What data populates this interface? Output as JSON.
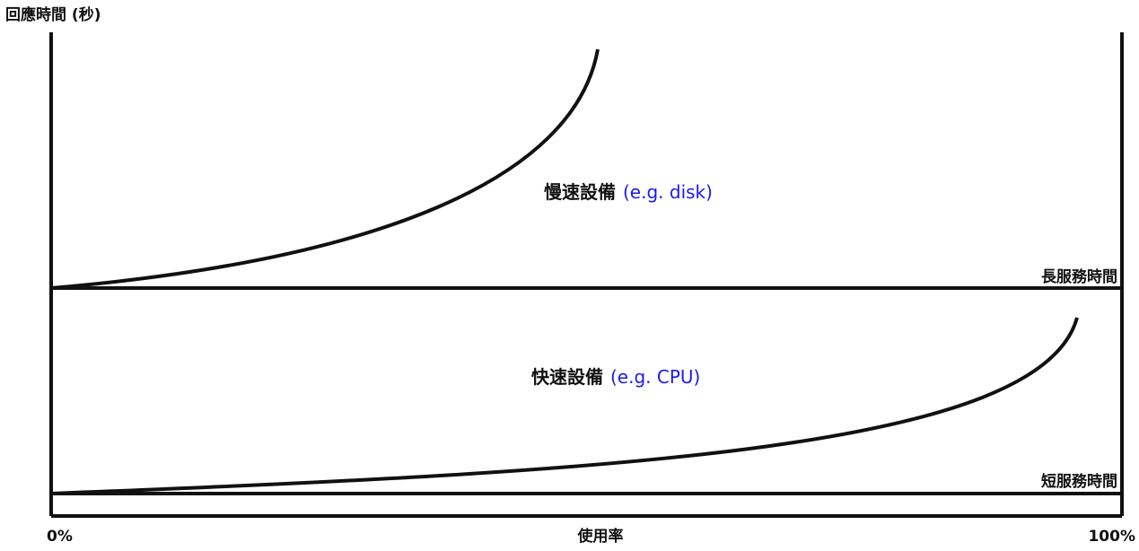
{
  "y_axis_label": "回應時間 (秒)",
  "x_axis_label": "使用率",
  "x_tick_start": "0%",
  "x_tick_end": "100%",
  "slow": {
    "device_label": "慢速設備",
    "example": "(e.g. disk)",
    "baseline_label": "長服務時間"
  },
  "fast": {
    "device_label": "快速設備",
    "example": "(e.g. CPU)",
    "baseline_label": "短服務時間"
  },
  "colors": {
    "line": "#111111",
    "example_text": "#1a1aee"
  }
}
